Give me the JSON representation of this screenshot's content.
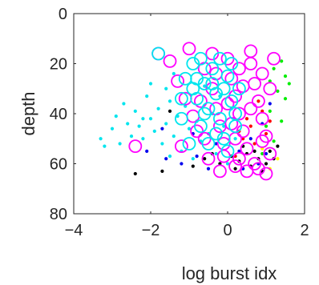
{
  "chart_data": {
    "type": "scatter",
    "title": "",
    "xlabel": "log burst idx",
    "ylabel": "depth",
    "xlim": [
      -4,
      2
    ],
    "ylim": [
      0,
      80
    ],
    "y_reversed": true,
    "grid": false,
    "legend": false,
    "xticks": [
      -4,
      -2,
      0,
      2
    ],
    "yticks": [
      0,
      20,
      40,
      60,
      80
    ],
    "series": [
      {
        "color": "#00e5ee",
        "marker": "dot",
        "points": [
          [
            -3.2,
            53
          ],
          [
            -3.0,
            46
          ],
          [
            -2.9,
            41
          ],
          [
            -2.7,
            36
          ],
          [
            -2.6,
            44
          ],
          [
            -2.5,
            49
          ],
          [
            -2.4,
            39
          ],
          [
            -2.3,
            45
          ],
          [
            -2.2,
            50
          ],
          [
            -2.1,
            33
          ],
          [
            -2.0,
            42
          ],
          [
            -1.9,
            47
          ],
          [
            -1.8,
            38
          ],
          [
            -1.7,
            52
          ],
          [
            -1.6,
            44
          ],
          [
            -1.5,
            35
          ],
          [
            -1.4,
            49
          ],
          [
            -1.3,
            41
          ],
          [
            -1.2,
            55
          ],
          [
            -1.1,
            37
          ],
          [
            -1.0,
            46
          ],
          [
            -0.9,
            58
          ],
          [
            -0.8,
            43
          ],
          [
            -0.7,
            51
          ],
          [
            -0.6,
            29
          ],
          [
            -0.5,
            48
          ],
          [
            -0.4,
            40
          ],
          [
            -0.3,
            56
          ],
          [
            -0.2,
            33
          ],
          [
            -0.1,
            45
          ],
          [
            0.0,
            60
          ],
          [
            0.1,
            38
          ],
          [
            0.2,
            50
          ],
          [
            -1.6,
            30
          ],
          [
            -2.0,
            28
          ],
          [
            -1.4,
            24
          ],
          [
            -3.3,
            50
          ],
          [
            -2.8,
            52
          ],
          [
            -2.2,
            42
          ],
          [
            -1.5,
            57
          ]
        ]
      },
      {
        "color": "#0000ee",
        "marker": "dot",
        "points": [
          [
            -1.7,
            46
          ],
          [
            -1.2,
            60
          ],
          [
            -0.8,
            57
          ],
          [
            -0.5,
            62
          ],
          [
            0.3,
            55
          ],
          [
            0.6,
            50
          ],
          [
            0.9,
            44
          ],
          [
            1.1,
            36
          ],
          [
            -0.3,
            52
          ],
          [
            0.8,
            60
          ],
          [
            -2.1,
            55
          ],
          [
            -1.6,
            58
          ],
          [
            0.4,
            62
          ],
          [
            1.0,
            56
          ],
          [
            -0.9,
            48
          ]
        ]
      },
      {
        "color": "#000000",
        "marker": "dot",
        "points": [
          [
            -2.4,
            64
          ],
          [
            -1.7,
            63
          ],
          [
            -1.5,
            39
          ],
          [
            -0.9,
            61
          ],
          [
            -0.6,
            58
          ],
          [
            -0.2,
            60
          ],
          [
            0.1,
            57
          ],
          [
            0.3,
            59
          ],
          [
            0.5,
            56
          ],
          [
            0.6,
            61
          ],
          [
            0.8,
            58
          ],
          [
            0.9,
            63
          ],
          [
            1.0,
            60
          ],
          [
            1.1,
            55
          ],
          [
            1.2,
            58
          ],
          [
            0.2,
            62
          ],
          [
            0.7,
            55
          ],
          [
            -0.4,
            56
          ],
          [
            1.3,
            53
          ],
          [
            0.4,
            53
          ]
        ]
      },
      {
        "color": "#ff0000",
        "marker": "dot",
        "points": [
          [
            0.3,
            47
          ],
          [
            0.5,
            42
          ],
          [
            0.7,
            52
          ],
          [
            0.9,
            39
          ],
          [
            1.0,
            48
          ],
          [
            0.2,
            57
          ],
          [
            0.6,
            45
          ],
          [
            0.8,
            35
          ],
          [
            1.1,
            43
          ],
          [
            0.4,
            50
          ]
        ]
      },
      {
        "color": "#00ee00",
        "marker": "dot",
        "points": [
          [
            1.2,
            22
          ],
          [
            1.4,
            19
          ],
          [
            1.5,
            25
          ],
          [
            1.3,
            31
          ],
          [
            1.1,
            39
          ],
          [
            1.0,
            45
          ],
          [
            1.2,
            51
          ],
          [
            1.5,
            34
          ],
          [
            1.6,
            28
          ],
          [
            0.9,
            56
          ],
          [
            1.4,
            43
          ],
          [
            1.1,
            27
          ]
        ]
      },
      {
        "color": "#ffff00",
        "marker": "dot",
        "points": [
          [
            1.3,
            58
          ],
          [
            1.1,
            62
          ],
          [
            0.9,
            54
          ]
        ]
      },
      {
        "color": "#ff00ff",
        "marker": "circle",
        "points": [
          [
            -2.4,
            53
          ],
          [
            -1.8,
            16
          ],
          [
            -1.2,
            53
          ],
          [
            -1.5,
            19
          ],
          [
            -1.3,
            27
          ],
          [
            -1.1,
            34
          ],
          [
            -0.9,
            41
          ],
          [
            -0.8,
            47
          ],
          [
            -0.6,
            22
          ],
          [
            -0.4,
            30
          ],
          [
            -0.3,
            38
          ],
          [
            -0.2,
            45
          ],
          [
            -0.1,
            52
          ],
          [
            0.0,
            18
          ],
          [
            0.1,
            26
          ],
          [
            0.2,
            33
          ],
          [
            0.3,
            40
          ],
          [
            0.4,
            47
          ],
          [
            0.5,
            54
          ],
          [
            0.6,
            20
          ],
          [
            0.7,
            28
          ],
          [
            0.8,
            35
          ],
          [
            0.9,
            42
          ],
          [
            1.0,
            49
          ],
          [
            1.1,
            56
          ],
          [
            0.2,
            61
          ],
          [
            0.5,
            63
          ],
          [
            0.8,
            62
          ],
          [
            1.0,
            64
          ],
          [
            -0.5,
            58
          ],
          [
            -0.2,
            63
          ],
          [
            0.3,
            58
          ],
          [
            0.7,
            60
          ],
          [
            1.1,
            30
          ],
          [
            1.2,
            18
          ],
          [
            0.9,
            24
          ],
          [
            0.6,
            15
          ],
          [
            0.3,
            22
          ],
          [
            -0.7,
            35
          ],
          [
            -1.0,
            14
          ],
          [
            -0.4,
            16
          ],
          [
            0.1,
            44
          ],
          [
            0.4,
            29
          ],
          [
            -0.3,
            24
          ],
          [
            0.0,
            36
          ],
          [
            0.6,
            38
          ],
          [
            0.9,
            51
          ],
          [
            -0.6,
            50
          ],
          [
            0.2,
            50
          ],
          [
            -0.1,
            57
          ]
        ]
      },
      {
        "color": "#00e5ee",
        "marker": "circle",
        "points": [
          [
            -1.8,
            16
          ],
          [
            -1.2,
            42
          ],
          [
            -1.1,
            26
          ],
          [
            -0.9,
            20
          ],
          [
            -0.8,
            34
          ],
          [
            -0.7,
            45
          ],
          [
            -0.6,
            28
          ],
          [
            -0.5,
            38
          ],
          [
            -0.4,
            22
          ],
          [
            -0.3,
            32
          ],
          [
            -0.2,
            42
          ],
          [
            -0.1,
            50
          ],
          [
            0.0,
            25
          ],
          [
            0.1,
            35
          ],
          [
            0.2,
            45
          ],
          [
            -0.5,
            52
          ],
          [
            -0.3,
            48
          ],
          [
            0.0,
            55
          ],
          [
            -1.0,
            52
          ],
          [
            -0.7,
            18
          ],
          [
            -0.2,
            18
          ],
          [
            0.1,
            20
          ],
          [
            -0.4,
            28
          ],
          [
            -0.1,
            30
          ],
          [
            -0.6,
            40
          ],
          [
            -0.9,
            30
          ],
          [
            -1.2,
            34
          ],
          [
            0.3,
            30
          ],
          [
            0.2,
            40
          ],
          [
            -0.8,
            26
          ]
        ]
      }
    ]
  }
}
